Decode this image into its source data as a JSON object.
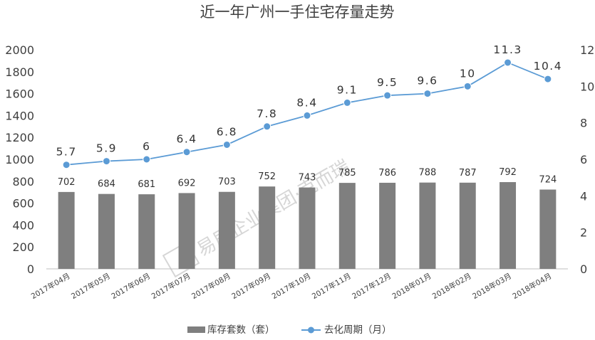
{
  "chart_data": {
    "type": "bar+line",
    "title": "近一年广州一手住宅存量走势",
    "categories": [
      "2017年04月",
      "2017年05月",
      "2017年06月",
      "2017年07月",
      "2017年08月",
      "2017年09月",
      "2017年10月",
      "2017年11月",
      "2017年12月",
      "2018年01月",
      "2018年02月",
      "2018年03月",
      "2018年04月"
    ],
    "series": [
      {
        "name": "库存套数（套）",
        "type": "bar",
        "axis": "left",
        "color": "#7f7f7f",
        "values": [
          702,
          684,
          681,
          692,
          703,
          752,
          743,
          785,
          786,
          788,
          787,
          792,
          724
        ]
      },
      {
        "name": "去化周期（月）",
        "type": "line",
        "axis": "right",
        "color": "#5b9bd5",
        "values": [
          5.7,
          5.9,
          6,
          6.4,
          6.8,
          7.8,
          8.4,
          9.1,
          9.5,
          9.6,
          10,
          11.3,
          10.4
        ]
      }
    ],
    "y_left": {
      "min": 0,
      "max": 2000,
      "ticks": [
        0,
        200,
        400,
        600,
        800,
        1000,
        1200,
        1400,
        1600,
        1800,
        2000
      ]
    },
    "y_right": {
      "min": 0,
      "max": 12,
      "ticks": [
        0,
        2,
        4,
        6,
        8,
        10,
        12
      ]
    },
    "legend_position": "bottom",
    "watermark": "易居企业集团·克而瑞"
  }
}
